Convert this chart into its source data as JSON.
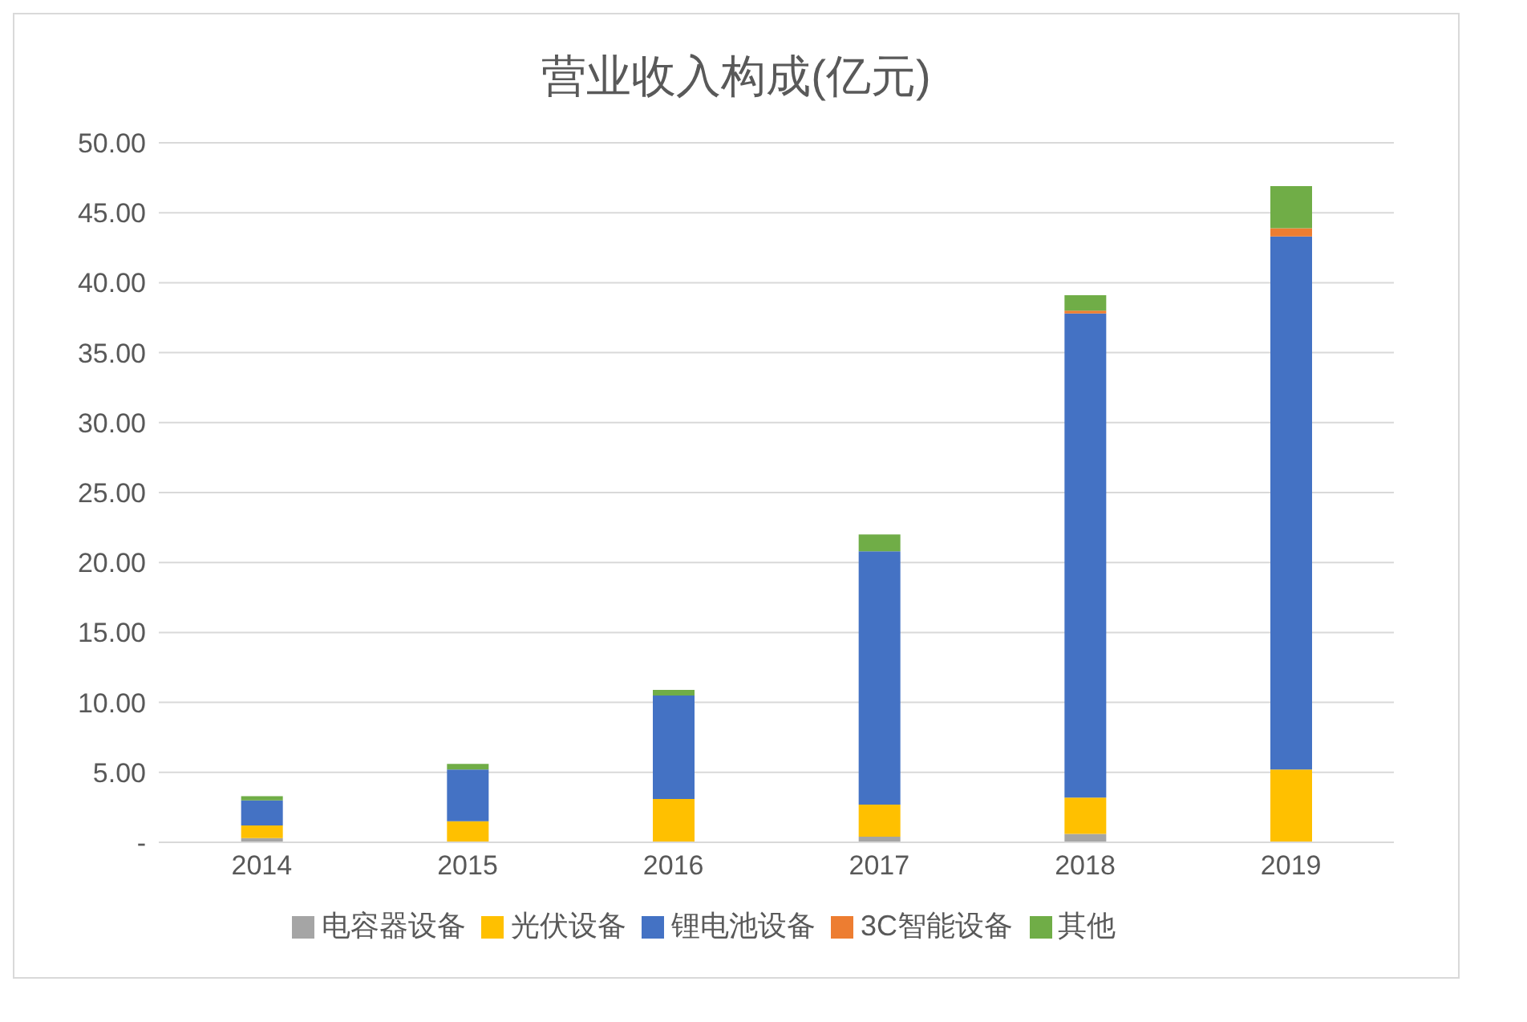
{
  "chart_data": {
    "type": "bar",
    "title": "营业收入构成(亿元)",
    "stacked": true,
    "categories": [
      "2014",
      "2015",
      "2016",
      "2017",
      "2018",
      "2019"
    ],
    "series": [
      {
        "name": "电容器设备",
        "color": "#a5a5a5",
        "values": [
          0.3,
          0,
          0,
          0.4,
          0.6,
          0
        ]
      },
      {
        "name": "光伏设备",
        "color": "#ffc000",
        "values": [
          0.9,
          1.5,
          3.1,
          2.3,
          2.6,
          5.2
        ]
      },
      {
        "name": "锂电池设备",
        "color": "#4472c4",
        "values": [
          1.8,
          3.7,
          7.4,
          18.1,
          34.6,
          38.1
        ]
      },
      {
        "name": "3C智能设备",
        "color": "#ed7d31",
        "values": [
          0,
          0,
          0,
          0,
          0.2,
          0.6
        ]
      },
      {
        "name": "其他",
        "color": "#70ad47",
        "values": [
          0.3,
          0.4,
          0.4,
          1.2,
          1.1,
          3.0
        ]
      }
    ],
    "ylim": [
      0,
      50
    ],
    "yticks": [
      {
        "value": 0,
        "label": "-"
      },
      {
        "value": 5,
        "label": "5.00"
      },
      {
        "value": 10,
        "label": "10.00"
      },
      {
        "value": 15,
        "label": "15.00"
      },
      {
        "value": 20,
        "label": "20.00"
      },
      {
        "value": 25,
        "label": "25.00"
      },
      {
        "value": 30,
        "label": "30.00"
      },
      {
        "value": 35,
        "label": "35.00"
      },
      {
        "value": 40,
        "label": "40.00"
      },
      {
        "value": 45,
        "label": "45.00"
      },
      {
        "value": 50,
        "label": "50.00"
      }
    ],
    "grid": "y",
    "legend": "bottom"
  }
}
